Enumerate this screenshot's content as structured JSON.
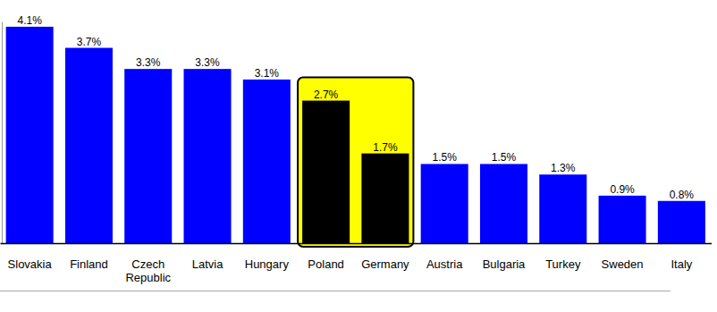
{
  "chart_data": {
    "type": "bar",
    "categories": [
      "Slovakia",
      "Finland",
      "Czech Republic",
      "Latvia",
      "Hungary",
      "Poland",
      "Germany",
      "Austria",
      "Bulgaria",
      "Turkey",
      "Sweden",
      "Italy"
    ],
    "values": [
      4.1,
      3.7,
      3.3,
      3.3,
      3.1,
      2.7,
      1.7,
      1.5,
      1.5,
      1.3,
      0.9,
      0.8
    ],
    "value_labels": [
      "4.1%",
      "3.7%",
      "3.3%",
      "3.3%",
      "3.1%",
      "2.7%",
      "1.7%",
      "1.5%",
      "1.5%",
      "1.3%",
      "0.9%",
      "0.8%"
    ],
    "colors": [
      "#0000ff",
      "#0000ff",
      "#0000ff",
      "#0000ff",
      "#0000ff",
      "#000000",
      "#000000",
      "#0000ff",
      "#0000ff",
      "#0000ff",
      "#0000ff",
      "#0000ff"
    ],
    "ylim": [
      0,
      4.2
    ],
    "data_labels": true,
    "tick_labels": "x"
  }
}
